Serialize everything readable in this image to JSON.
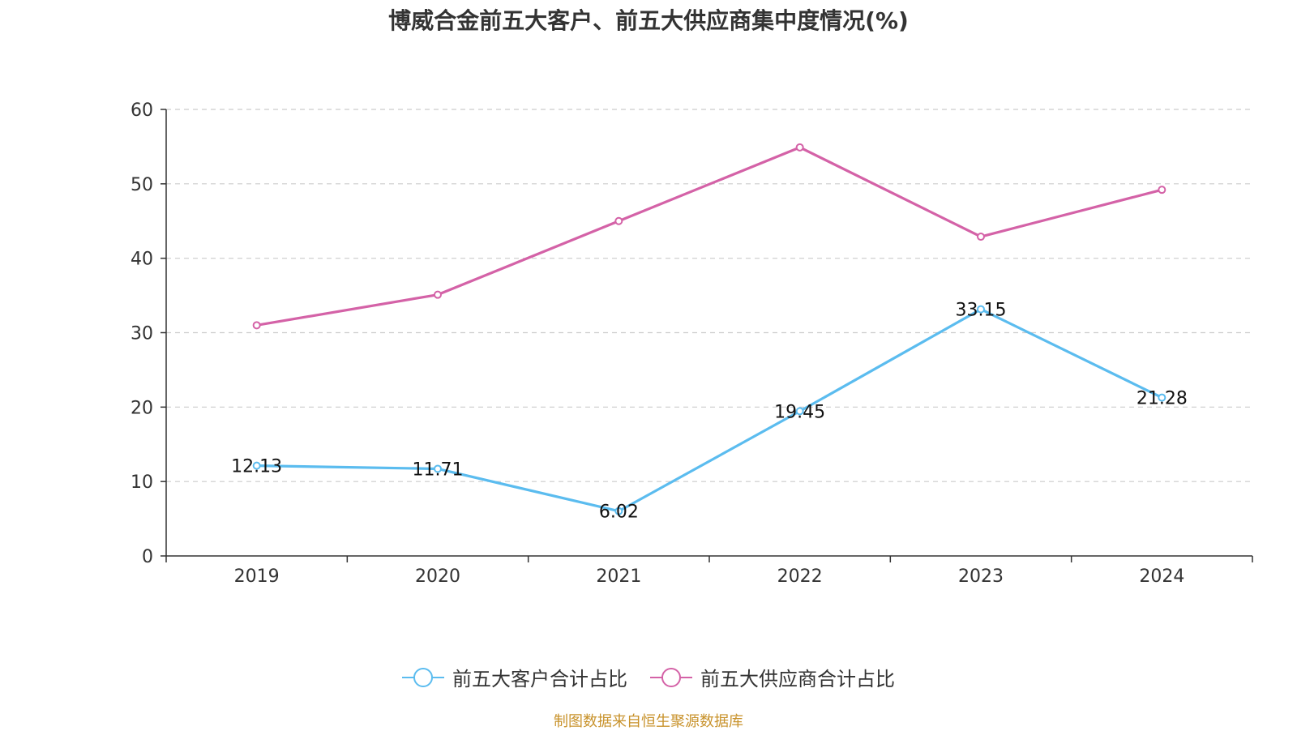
{
  "chart_data": {
    "type": "line",
    "title": "博威合金前五大客户、前五大供应商集中度情况(%)",
    "categories": [
      "2019",
      "2020",
      "2021",
      "2022",
      "2023",
      "2024"
    ],
    "ylim": [
      0,
      60
    ],
    "yticks": [
      0,
      10,
      20,
      30,
      40,
      50,
      60
    ],
    "grid": true,
    "legend_position": "bottom",
    "series": [
      {
        "name": "前五大客户合计占比",
        "color": "#5bbcef",
        "values": [
          12.13,
          11.71,
          6.02,
          19.45,
          33.15,
          21.28
        ],
        "labels": [
          "12.13",
          "11.71",
          "6.02",
          "19.45",
          "33.15",
          "21.28"
        ],
        "show_labels": true
      },
      {
        "name": "前五大供应商合计占比",
        "color": "#d462a7",
        "values": [
          31.0,
          35.1,
          45.0,
          54.9,
          42.9,
          49.2
        ],
        "show_labels": false
      }
    ]
  },
  "footer": {
    "source": "制图数据来自恒生聚源数据库"
  }
}
